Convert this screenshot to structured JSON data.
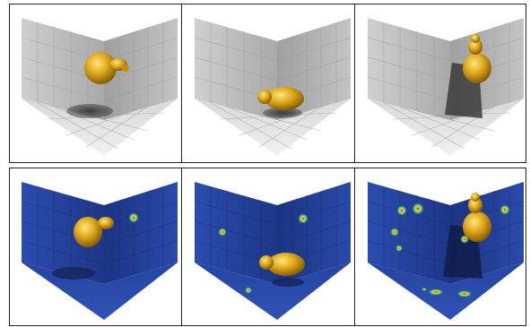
{
  "figure": {
    "rows": [
      {
        "name": "top-row",
        "theme": "gray",
        "panels": [
          {
            "name": "panel-head-front",
            "object": "golden-head-facing-right",
            "heat_spots": 0
          },
          {
            "name": "panel-head-lying",
            "object": "golden-head-lying-down",
            "heat_spots": 0
          },
          {
            "name": "panel-head-upright",
            "object": "golden-head-upright",
            "heat_spots": 0
          }
        ]
      },
      {
        "name": "bottom-row",
        "theme": "blue-heatmap",
        "panels": [
          {
            "name": "panel-heat-front",
            "object": "golden-head-facing-right",
            "heat_spots": 1
          },
          {
            "name": "panel-heat-lying",
            "object": "golden-head-lying-down",
            "heat_spots": 3
          },
          {
            "name": "panel-heat-upright",
            "object": "golden-head-upright",
            "heat_spots": 9
          }
        ]
      }
    ],
    "colors": {
      "wall_gray": "#b9b9b9",
      "floor_gray": "#e4e4e4",
      "wall_blue": "#23409a",
      "floor_blue": "#2a4aa8",
      "gold": "#d9a21a",
      "shadow": "#3a3a3a"
    }
  }
}
